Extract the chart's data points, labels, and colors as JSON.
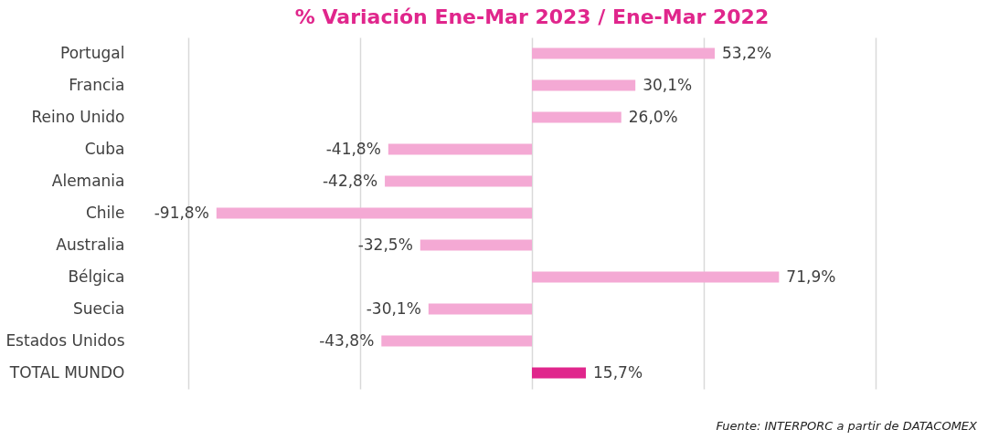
{
  "chart_data": {
    "type": "bar",
    "orientation": "horizontal",
    "title": "% Variación Ene-Mar 2023 / Ene-Mar 2022",
    "categories": [
      "Portugal",
      "Francia",
      "Reino Unido",
      "Cuba",
      "Alemania",
      "Chile",
      "Australia",
      "Bélgica",
      "Suecia",
      "Estados Unidos",
      "TOTAL MUNDO"
    ],
    "values": [
      53.2,
      30.1,
      26.0,
      -41.8,
      -42.8,
      -91.8,
      -32.5,
      71.9,
      -30.1,
      -43.8,
      15.7
    ],
    "value_labels": [
      "53,2%",
      "30,1%",
      "26,0%",
      "-41,8%",
      "-42,8%",
      "-91,8%",
      "-32,5%",
      "71,9%",
      "-30,1%",
      "-43,8%",
      "15,7%"
    ],
    "colors": [
      "#f4a9d4",
      "#f4a9d4",
      "#f4a9d4",
      "#f4a9d4",
      "#f4a9d4",
      "#f4a9d4",
      "#f4a9d4",
      "#f4a9d4",
      "#f4a9d4",
      "#f4a9d4",
      "#e0268c"
    ],
    "xlim": [
      -100,
      100
    ],
    "xticks": [
      {
        "value": -100,
        "label": null
      },
      {
        "value": -50,
        "label": null
      },
      {
        "value": 0,
        "label": null
      },
      {
        "value": 50,
        "label": null
      },
      {
        "value": 100,
        "label": null
      }
    ],
    "tick_labels": "y",
    "grid": "x",
    "annotations": [
      "Fuente: INTERPORC  a partir de DATACOMEX"
    ]
  }
}
